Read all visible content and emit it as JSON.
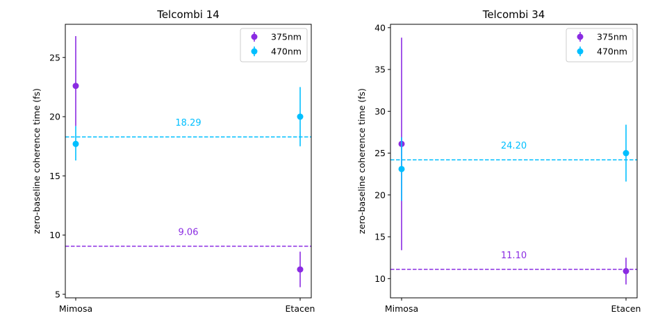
{
  "chart_data": [
    {
      "type": "scatter",
      "title": "Telcombi 14",
      "xlabel": "",
      "ylabel": "zero-baseline coherence time (fs)",
      "categories": [
        "Mimosa",
        "Etacen"
      ],
      "ylim": [
        4.7,
        27.8
      ],
      "yticks": [
        5,
        10,
        15,
        20,
        25
      ],
      "legend_position": "top-right",
      "series": [
        {
          "name": "375nm",
          "color": "#8a2be2",
          "points": [
            {
              "x": "Mimosa",
              "y": 22.6,
              "yerr_low": 19.2,
              "yerr_high": 26.8
            },
            {
              "x": "Etacen",
              "y": 7.1,
              "yerr_low": 5.6,
              "yerr_high": 8.6
            }
          ]
        },
        {
          "name": "470nm",
          "color": "#00bfff",
          "points": [
            {
              "x": "Mimosa",
              "y": 17.7,
              "yerr_low": 16.3,
              "yerr_high": 19.2
            },
            {
              "x": "Etacen",
              "y": 20.0,
              "yerr_low": 17.5,
              "yerr_high": 22.5
            }
          ]
        }
      ],
      "hlines": [
        {
          "y": 18.29,
          "label": "18.29",
          "color": "#00bfff"
        },
        {
          "y": 9.06,
          "label": "9.06",
          "color": "#8a2be2"
        }
      ]
    },
    {
      "type": "scatter",
      "title": "Telcombi 34",
      "xlabel": "",
      "ylabel": "zero-baseline coherence time (fs)",
      "categories": [
        "Mimosa",
        "Etacen"
      ],
      "ylim": [
        7.7,
        40.4
      ],
      "yticks": [
        10,
        15,
        20,
        25,
        30,
        35,
        40
      ],
      "legend_position": "top-right",
      "series": [
        {
          "name": "375nm",
          "color": "#8a2be2",
          "points": [
            {
              "x": "Mimosa",
              "y": 26.1,
              "yerr_low": 13.4,
              "yerr_high": 38.8
            },
            {
              "x": "Etacen",
              "y": 10.9,
              "yerr_low": 9.3,
              "yerr_high": 12.5
            }
          ]
        },
        {
          "name": "470nm",
          "color": "#00bfff",
          "points": [
            {
              "x": "Mimosa",
              "y": 23.1,
              "yerr_low": 19.3,
              "yerr_high": 26.9
            },
            {
              "x": "Etacen",
              "y": 25.0,
              "yerr_low": 21.6,
              "yerr_high": 28.4
            }
          ]
        }
      ],
      "hlines": [
        {
          "y": 24.2,
          "label": "24.20",
          "color": "#00bfff"
        },
        {
          "y": 11.1,
          "label": "11.10",
          "color": "#8a2be2"
        }
      ]
    }
  ]
}
